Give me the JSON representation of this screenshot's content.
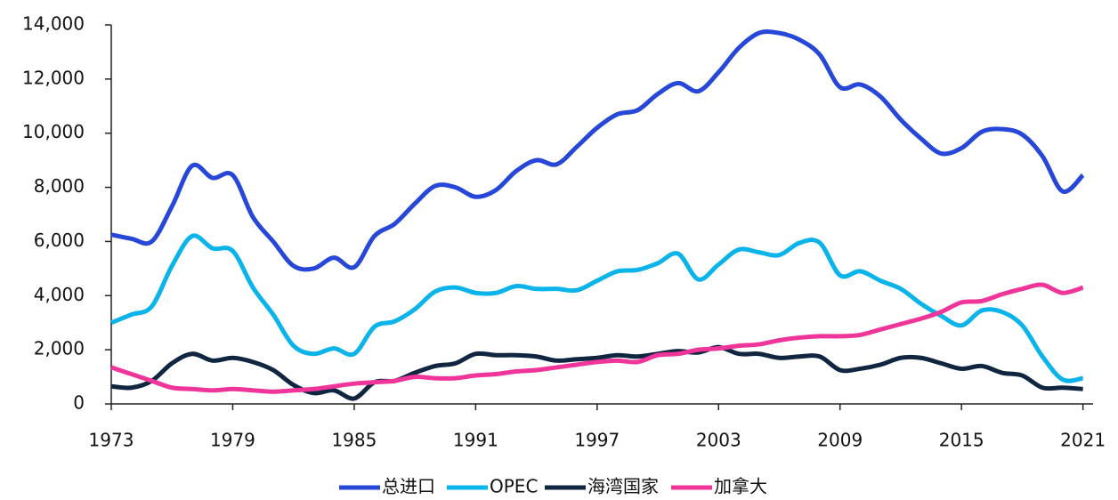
{
  "chart_data": {
    "type": "line",
    "x": [
      1973,
      1974,
      1975,
      1976,
      1977,
      1978,
      1979,
      1980,
      1981,
      1982,
      1983,
      1984,
      1985,
      1986,
      1987,
      1988,
      1989,
      1990,
      1991,
      1992,
      1993,
      1994,
      1995,
      1996,
      1997,
      1998,
      1999,
      2000,
      2001,
      2002,
      2003,
      2004,
      2005,
      2006,
      2007,
      2008,
      2009,
      2010,
      2011,
      2012,
      2013,
      2014,
      2015,
      2016,
      2017,
      2018,
      2019,
      2020,
      2021
    ],
    "xlim": [
      1973,
      2021.5
    ],
    "xticks": [
      1973,
      1979,
      1985,
      1991,
      1997,
      2003,
      2009,
      2015,
      2021
    ],
    "ylim": [
      0,
      14000
    ],
    "yticks": [
      0,
      {
        "value": 2000,
        "label": "2,000"
      },
      {
        "value": 4000,
        "label": "4,000"
      },
      {
        "value": 6000,
        "label": "6,000"
      },
      {
        "value": 8000,
        "label": "8,000"
      },
      {
        "value": 10000,
        "label": "10,000"
      },
      {
        "value": 12000,
        "label": "12,000"
      },
      {
        "value": 14000,
        "label": "14,000"
      }
    ],
    "legend": "bottom",
    "series": [
      {
        "name": "总进口",
        "color": "#2647d8",
        "values": [
          6250,
          6100,
          6000,
          7300,
          8800,
          8350,
          8450,
          6900,
          6000,
          5100,
          5000,
          5400,
          5050,
          6200,
          6650,
          7400,
          8050,
          8000,
          7650,
          7900,
          8600,
          9000,
          8850,
          9500,
          10200,
          10700,
          10850,
          11450,
          11850,
          11550,
          12250,
          13150,
          13700,
          13700,
          13450,
          12900,
          11700,
          11800,
          11350,
          10500,
          9800,
          9250,
          9450,
          10050,
          10150,
          9950,
          9150,
          7850,
          8450
        ]
      },
      {
        "name": "OPEC",
        "color": "#0ab4ea",
        "values": [
          3000,
          3300,
          3600,
          5100,
          6200,
          5750,
          5650,
          4300,
          3300,
          2150,
          1850,
          2050,
          1850,
          2850,
          3050,
          3500,
          4150,
          4300,
          4100,
          4100,
          4350,
          4250,
          4250,
          4200,
          4550,
          4900,
          4950,
          5200,
          5550,
          4600,
          5150,
          5700,
          5600,
          5500,
          5950,
          5950,
          4750,
          4900,
          4550,
          4250,
          3700,
          3250,
          2900,
          3450,
          3400,
          2900,
          1750,
          900,
          950
        ]
      },
      {
        "name": "海湾国家",
        "color": "#0f2540",
        "values": [
          650,
          600,
          850,
          1500,
          1850,
          1600,
          1700,
          1550,
          1250,
          700,
          400,
          500,
          200,
          800,
          850,
          1150,
          1400,
          1500,
          1850,
          1800,
          1800,
          1750,
          1600,
          1650,
          1700,
          1800,
          1750,
          1850,
          1950,
          1900,
          2100,
          1850,
          1850,
          1700,
          1750,
          1750,
          1250,
          1300,
          1450,
          1700,
          1700,
          1500,
          1300,
          1400,
          1150,
          1050,
          600,
          600,
          550
        ]
      },
      {
        "name": "加拿大",
        "color": "#f0359a",
        "values": [
          1350,
          1100,
          850,
          600,
          550,
          500,
          550,
          500,
          450,
          500,
          550,
          650,
          750,
          800,
          850,
          1000,
          950,
          950,
          1050,
          1100,
          1200,
          1250,
          1350,
          1450,
          1550,
          1600,
          1550,
          1800,
          1850,
          2000,
          2050,
          2150,
          2200,
          2350,
          2450,
          2500,
          2500,
          2550,
          2750,
          2950,
          3150,
          3400,
          3750,
          3800,
          4050,
          4250,
          4400,
          4100,
          4300
        ]
      }
    ]
  }
}
